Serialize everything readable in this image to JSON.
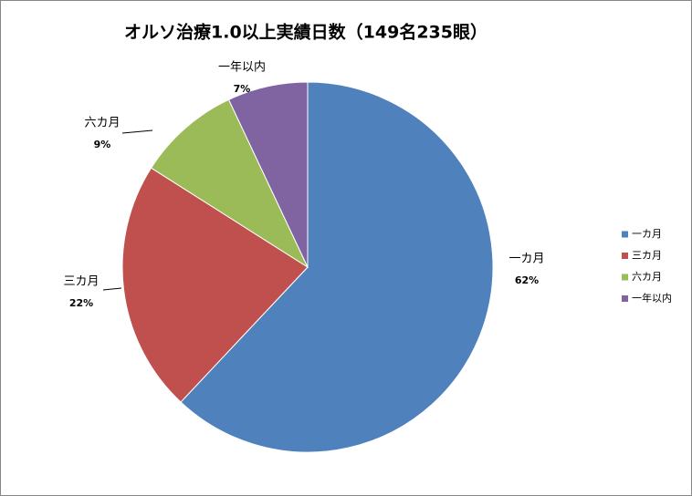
{
  "chart_data": {
    "type": "pie",
    "title": "オルソ治療1.0以上実績日数（149名235眼）",
    "categories": [
      "一カ月",
      "三カ月",
      "六カ月",
      "一年以内"
    ],
    "values": [
      62,
      22,
      9,
      7
    ],
    "value_labels": [
      "62%",
      "22%",
      "9%",
      "7%"
    ],
    "colors": [
      "#4f81bd",
      "#c0504d",
      "#9bbb59",
      "#8064a2"
    ],
    "legend": "right"
  }
}
